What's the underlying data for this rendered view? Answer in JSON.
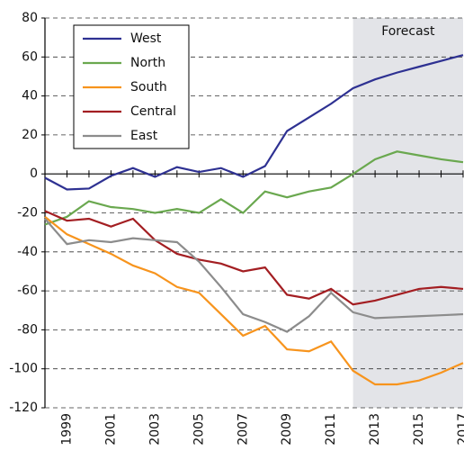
{
  "chart_data": {
    "type": "line",
    "x": [
      1998,
      1999,
      2000,
      2001,
      2002,
      2003,
      2004,
      2005,
      2006,
      2007,
      2008,
      2009,
      2010,
      2011,
      2012,
      2013,
      2014,
      2015,
      2016,
      2017
    ],
    "xlim": [
      1998,
      2017
    ],
    "xticks": [
      1999,
      2001,
      2003,
      2005,
      2007,
      2009,
      2011,
      2013,
      2015,
      2017
    ],
    "ylim": [
      -120,
      80
    ],
    "yticks": [
      -120,
      -100,
      -80,
      -60,
      -40,
      -20,
      0,
      20,
      40,
      60,
      80
    ],
    "grid": true,
    "legend": "upper left",
    "forecast": {
      "x": 2012,
      "label": "Forecast"
    },
    "series": [
      {
        "name": "West",
        "color": "#2e3192",
        "values": [
          -2,
          -8,
          -7.5,
          -1,
          3,
          -1.5,
          3.5,
          1,
          3,
          -1.5,
          4,
          22,
          29,
          36,
          44,
          48.5,
          52,
          55,
          58,
          61
        ]
      },
      {
        "name": "North",
        "color": "#6aa84f",
        "values": [
          -26,
          -22,
          -14,
          -17,
          -18,
          -20,
          -18,
          -20,
          -13,
          -20,
          -9,
          -12,
          -9,
          -7,
          0,
          7.5,
          11.5,
          9.5,
          7.5,
          6
        ]
      },
      {
        "name": "South",
        "color": "#f7941d",
        "values": [
          -22,
          -31,
          -36,
          -41,
          -47,
          -51,
          -58,
          -61,
          -72,
          -83,
          -78,
          -90,
          -91,
          -86,
          -101,
          -108,
          -108,
          -106,
          -102,
          -97
        ]
      },
      {
        "name": "Central",
        "color": "#a31e22",
        "values": [
          -19,
          -24,
          -23,
          -27,
          -23,
          -34,
          -41,
          -44,
          -46,
          -50,
          -48,
          -62,
          -64,
          -59,
          -67,
          -65,
          -62,
          -59,
          -58,
          -59
        ]
      },
      {
        "name": "East",
        "color": "#8c8c8c",
        "values": [
          -23,
          -36,
          -34,
          -35,
          -33,
          -34,
          -35,
          -45,
          -58,
          -72,
          -76,
          -81,
          -73,
          -61,
          -71,
          -74,
          -73.5,
          -73,
          -72.5,
          -72
        ]
      }
    ]
  }
}
